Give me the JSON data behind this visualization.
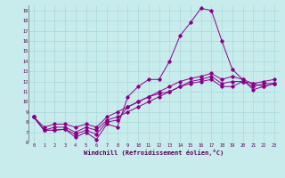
{
  "xlabel": "Windchill (Refroidissement éolien,°C)",
  "bg_color": "#c8ecec",
  "line_color": "#8b008b",
  "grid_color": "#a8d8d8",
  "xlim": [
    -0.5,
    23.5
  ],
  "ylim": [
    6,
    19.5
  ],
  "yticks": [
    6,
    7,
    8,
    9,
    10,
    11,
    12,
    13,
    14,
    15,
    16,
    17,
    18,
    19
  ],
  "xticks": [
    0,
    1,
    2,
    3,
    4,
    5,
    6,
    7,
    8,
    9,
    10,
    11,
    12,
    13,
    14,
    15,
    16,
    17,
    18,
    19,
    20,
    21,
    22,
    23
  ],
  "series": [
    [
      8.5,
      7.2,
      7.2,
      7.3,
      6.5,
      7.0,
      6.3,
      7.8,
      7.5,
      10.5,
      11.5,
      12.2,
      12.2,
      14.0,
      16.5,
      17.8,
      19.2,
      19.0,
      16.0,
      13.2,
      12.2,
      11.2,
      11.5,
      11.8
    ],
    [
      8.5,
      7.2,
      7.2,
      7.3,
      6.8,
      7.2,
      6.8,
      8.0,
      8.2,
      9.5,
      10.0,
      10.5,
      10.8,
      11.0,
      11.5,
      11.8,
      12.0,
      12.2,
      11.5,
      11.5,
      12.0,
      11.8,
      11.5,
      11.8
    ],
    [
      8.5,
      7.2,
      7.5,
      7.5,
      7.0,
      7.5,
      7.2,
      8.2,
      8.5,
      9.0,
      9.5,
      10.0,
      10.5,
      11.0,
      11.5,
      12.0,
      12.2,
      12.5,
      11.8,
      12.0,
      12.0,
      11.5,
      11.8,
      11.8
    ],
    [
      8.5,
      7.5,
      7.8,
      7.8,
      7.5,
      7.8,
      7.5,
      8.5,
      9.0,
      9.5,
      10.0,
      10.5,
      11.0,
      11.5,
      12.0,
      12.3,
      12.5,
      12.8,
      12.2,
      12.5,
      12.2,
      11.8,
      12.0,
      12.2
    ]
  ]
}
